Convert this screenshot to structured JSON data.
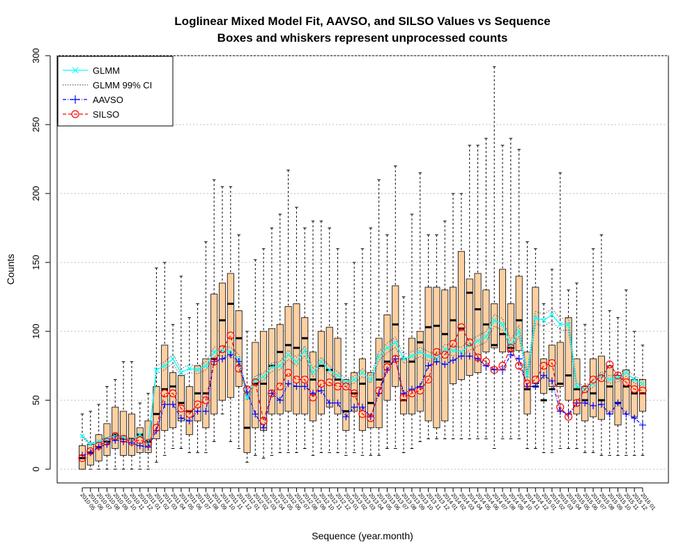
{
  "chart_data": {
    "type": "box",
    "title": "Loglinear Mixed Model Fit, AAVSO, and SILSO Values vs Sequence",
    "subtitle": "Boxes and whiskers represent unprocessed counts",
    "xlabel": "Sequence (year.month)",
    "ylabel": "Counts",
    "ylim": [
      -10,
      300
    ],
    "yticks": [
      0,
      50,
      100,
      150,
      200,
      250,
      300
    ],
    "grid": "horizontal-dotted",
    "legend_position": "top-left",
    "colors": {
      "box_fill": "#fdd0a2",
      "glmm": "#00ffff",
      "ci": "#555555",
      "aavso": "#0000ff",
      "silso": "#ff0000"
    },
    "legend": [
      {
        "label": "GLMM",
        "color": "#00ffff",
        "style": "solid",
        "marker": "x"
      },
      {
        "label": "GLMM 99% CI",
        "color": "#555555",
        "style": "dotted",
        "marker": ""
      },
      {
        "label": "AAVSO",
        "color": "#0000ff",
        "style": "dotdash",
        "marker": "+"
      },
      {
        "label": "SILSO",
        "color": "#ff0000",
        "style": "dashed",
        "marker": "o"
      }
    ],
    "categories": [
      "2010 05",
      "2010 06",
      "2010 07",
      "2010 08",
      "2010 09",
      "2010 10",
      "2010 11",
      "2010 12",
      "2011 01",
      "2011 02",
      "2011 03",
      "2011 04",
      "2011 05",
      "2011 06",
      "2011 07",
      "2011 08",
      "2011 09",
      "2011 10",
      "2011 11",
      "2011 12",
      "2012 01",
      "2012 02",
      "2012 03",
      "2012 04",
      "2012 05",
      "2012 06",
      "2012 07",
      "2012 08",
      "2012 09",
      "2012 10",
      "2012 11",
      "2012 12",
      "2013 01",
      "2013 02",
      "2013 03",
      "2013 04",
      "2013 05",
      "2013 06",
      "2013 07",
      "2013 08",
      "2013 09",
      "2013 10",
      "2013 11",
      "2013 12",
      "2014 01",
      "2014 02",
      "2014 03",
      "2014 04",
      "2014 05",
      "2014 06",
      "2014 07",
      "2014 08",
      "2014 09",
      "2014 10",
      "2014 11",
      "2014 12",
      "2015 01",
      "2015 02",
      "2015 03",
      "2015 04",
      "2015 05",
      "2015 06",
      "2015 07",
      "2015 08",
      "2015 09",
      "2015 10",
      "2015 11",
      "2015 12",
      "2016 01"
    ],
    "boxes": {
      "q1": [
        0,
        3,
        6,
        10,
        15,
        10,
        10,
        12,
        12,
        22,
        28,
        30,
        35,
        25,
        35,
        30,
        40,
        50,
        52,
        60,
        12,
        30,
        28,
        40,
        40,
        42,
        40,
        40,
        35,
        40,
        45,
        40,
        28,
        42,
        28,
        30,
        30,
        50,
        60,
        40,
        40,
        42,
        35,
        30,
        35,
        62,
        65,
        68,
        70,
        85,
        88,
        85,
        85,
        86,
        40,
        62,
        55,
        60,
        60,
        50,
        40,
        35,
        38,
        36,
        40,
        32,
        40,
        38,
        42
      ],
      "median": [
        8,
        12,
        16,
        20,
        25,
        22,
        22,
        25,
        20,
        40,
        58,
        60,
        48,
        42,
        55,
        55,
        80,
        108,
        120,
        95,
        30,
        62,
        62,
        75,
        85,
        90,
        88,
        95,
        65,
        75,
        72,
        65,
        42,
        55,
        62,
        48,
        65,
        78,
        105,
        50,
        78,
        92,
        103,
        104,
        98,
        108,
        102,
        128,
        116,
        105,
        90,
        98,
        88,
        108,
        58,
        60,
        50,
        58,
        62,
        68,
        58,
        50,
        55,
        50,
        60,
        48,
        60,
        55,
        55
      ],
      "q3": [
        17,
        18,
        25,
        33,
        45,
        42,
        40,
        30,
        35,
        60,
        90,
        70,
        68,
        60,
        75,
        80,
        127,
        135,
        142,
        115,
        55,
        92,
        100,
        102,
        105,
        118,
        120,
        110,
        85,
        100,
        103,
        95,
        65,
        70,
        80,
        70,
        95,
        112,
        133,
        80,
        95,
        100,
        132,
        132,
        130,
        132,
        158,
        138,
        142,
        130,
        120,
        145,
        120,
        140,
        85,
        132,
        80,
        90,
        92,
        110,
        80,
        60,
        80,
        82,
        75,
        68,
        72,
        65,
        65
      ],
      "lower": [
        0,
        0,
        0,
        0,
        0,
        0,
        0,
        0,
        0,
        5,
        10,
        15,
        15,
        12,
        12,
        12,
        20,
        40,
        20,
        15,
        5,
        10,
        8,
        10,
        12,
        12,
        12,
        15,
        10,
        12,
        12,
        12,
        10,
        12,
        10,
        10,
        10,
        15,
        15,
        12,
        15,
        20,
        22,
        22,
        22,
        22,
        22,
        22,
        22,
        22,
        15,
        22,
        22,
        22,
        15,
        15,
        12,
        12,
        15,
        15,
        15,
        12,
        12,
        10,
        10,
        10,
        10,
        10,
        10
      ],
      "upper": [
        40,
        42,
        47,
        60,
        65,
        78,
        78,
        48,
        55,
        146,
        150,
        105,
        140,
        110,
        120,
        165,
        210,
        205,
        205,
        170,
        100,
        152,
        160,
        175,
        185,
        217,
        190,
        175,
        180,
        180,
        175,
        160,
        120,
        150,
        160,
        175,
        210,
        170,
        220,
        125,
        185,
        215,
        170,
        170,
        180,
        200,
        200,
        235,
        235,
        240,
        292,
        235,
        240,
        232,
        165,
        160,
        120,
        145,
        215,
        130,
        135,
        105,
        160,
        170,
        115,
        110,
        130,
        100,
        90
      ]
    },
    "series": [
      {
        "name": "GLMM",
        "values": [
          24,
          18,
          20,
          22,
          24,
          23,
          21,
          25,
          18,
          72,
          75,
          80,
          70,
          73,
          72,
          75,
          85,
          86,
          85,
          80,
          52,
          65,
          67,
          74,
          75,
          83,
          78,
          86,
          70,
          78,
          72,
          68,
          63,
          65,
          70,
          65,
          82,
          88,
          92,
          80,
          82,
          85,
          82,
          80,
          87,
          86,
          85,
          90,
          93,
          96,
          108,
          105,
          90,
          100,
          68,
          110,
          108,
          112,
          105,
          105,
          60,
          58,
          62,
          68,
          65,
          66,
          70,
          65,
          62
        ]
      },
      {
        "name": "AAVSO",
        "values": [
          10,
          12,
          16,
          18,
          21,
          20,
          19,
          17,
          16,
          28,
          47,
          47,
          37,
          35,
          42,
          42,
          78,
          80,
          83,
          78,
          56,
          40,
          30,
          55,
          50,
          62,
          60,
          60,
          55,
          57,
          48,
          48,
          38,
          45,
          45,
          38,
          55,
          72,
          80,
          55,
          58,
          60,
          75,
          78,
          76,
          79,
          82,
          82,
          80,
          75,
          72,
          72,
          83,
          80,
          60,
          60,
          68,
          64,
          42,
          40,
          48,
          48,
          46,
          47,
          40,
          48,
          40,
          37,
          32
        ]
      },
      {
        "name": "SILSO",
        "values": [
          8,
          13,
          17,
          20,
          24,
          22,
          20,
          21,
          19,
          30,
          55,
          55,
          44,
          40,
          47,
          50,
          78,
          87,
          97,
          73,
          58,
          63,
          35,
          55,
          60,
          70,
          65,
          65,
          52,
          62,
          63,
          60,
          60,
          55,
          40,
          37,
          57,
          74,
          80,
          52,
          55,
          57,
          65,
          85,
          83,
          91,
          103,
          92,
          81,
          78,
          72,
          75,
          88,
          75,
          62,
          65,
          75,
          77,
          45,
          38,
          48,
          58,
          65,
          66,
          76,
          68,
          63,
          58,
          57
        ]
      },
      {
        "name": "GLMM 99% CI",
        "values": []
      }
    ]
  }
}
